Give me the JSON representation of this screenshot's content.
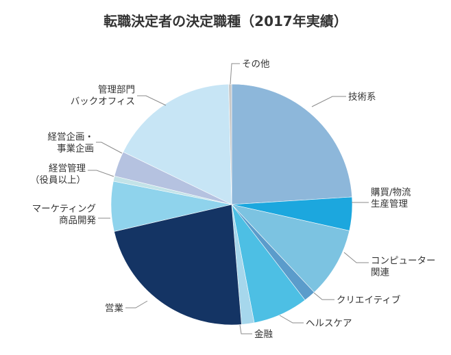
{
  "chart_data": {
    "type": "pie",
    "title": "転職決定者の決定職種（2017年実績）",
    "slices": [
      {
        "label": [
          "技術系"
        ],
        "value": 24.0,
        "color": "#8db7da"
      },
      {
        "label": [
          "購買/物流",
          "生産管理"
        ],
        "value": 4.5,
        "color": "#1ca7de"
      },
      {
        "label": [
          "コンピューター",
          "関連"
        ],
        "value": 9.5,
        "color": "#7cc3e1"
      },
      {
        "label": [
          "クリエイティブ"
        ],
        "value": 1.6,
        "color": "#5b9ccb"
      },
      {
        "label": [
          "ヘルスケア"
        ],
        "value": 7.4,
        "color": "#4dbfe4"
      },
      {
        "label": [
          "金融"
        ],
        "value": 1.7,
        "color": "#a6d7ec"
      },
      {
        "label": [
          "営業"
        ],
        "value": 22.7,
        "color": "#143464"
      },
      {
        "label": [
          "マーケティング",
          "商品開発"
        ],
        "value": 6.7,
        "color": "#8fd3ec"
      },
      {
        "label": [
          "経営管理",
          "（役員以上）"
        ],
        "value": 0.7,
        "color": "#c3e3e8"
      },
      {
        "label": [
          "経営企画・",
          "事業企画"
        ],
        "value": 3.4,
        "color": "#b5c2e0"
      },
      {
        "label": [
          "管理部門",
          "バックオフィス"
        ],
        "value": 17.4,
        "color": "#c7e5f5"
      },
      {
        "label": [
          "その他"
        ],
        "value": 0.4,
        "color": "#c8c8c8"
      }
    ]
  }
}
